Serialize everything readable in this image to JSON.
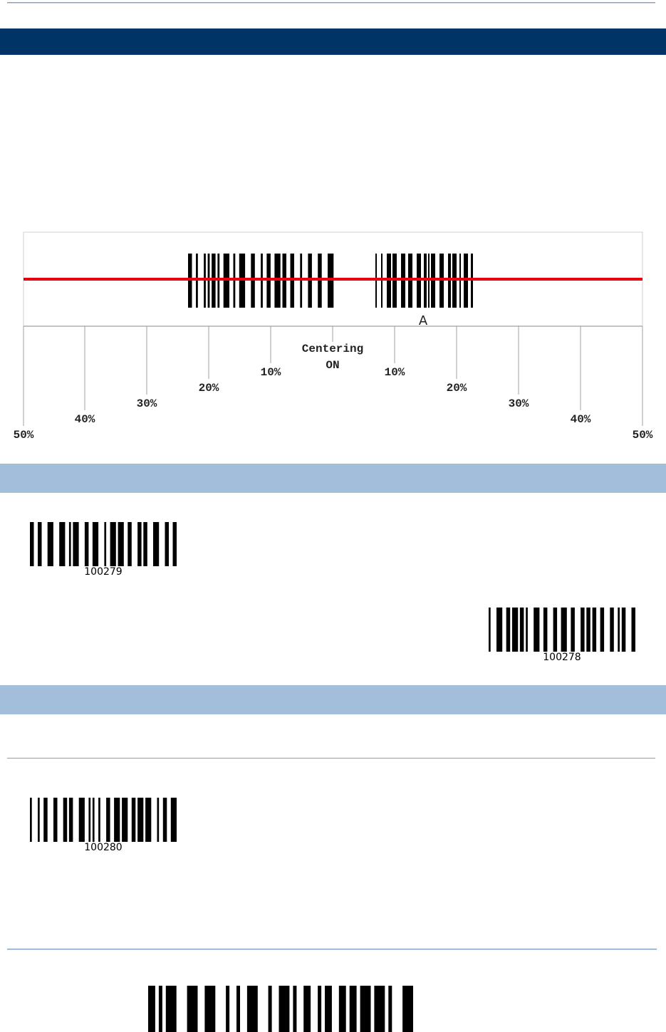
{
  "diagram": {
    "sample_barcode_caption": "A",
    "center_label_line1": "Centering",
    "center_label_line2": "ON",
    "left_ticks": [
      "10%",
      "20%",
      "30%",
      "40%",
      "50%"
    ],
    "right_ticks": [
      "10%",
      "20%",
      "30%",
      "40%",
      "50%"
    ],
    "colors": {
      "scan_line": "#e8000d",
      "tick_line": "#a0a0a0"
    }
  },
  "section1": {
    "barcodes": [
      {
        "code": "100279"
      },
      {
        "code": "100278"
      }
    ]
  },
  "section2": {
    "barcodes": [
      {
        "code": "100280"
      }
    ]
  },
  "colors": {
    "title_band": "#003366",
    "section_band": "#a2bedb"
  }
}
